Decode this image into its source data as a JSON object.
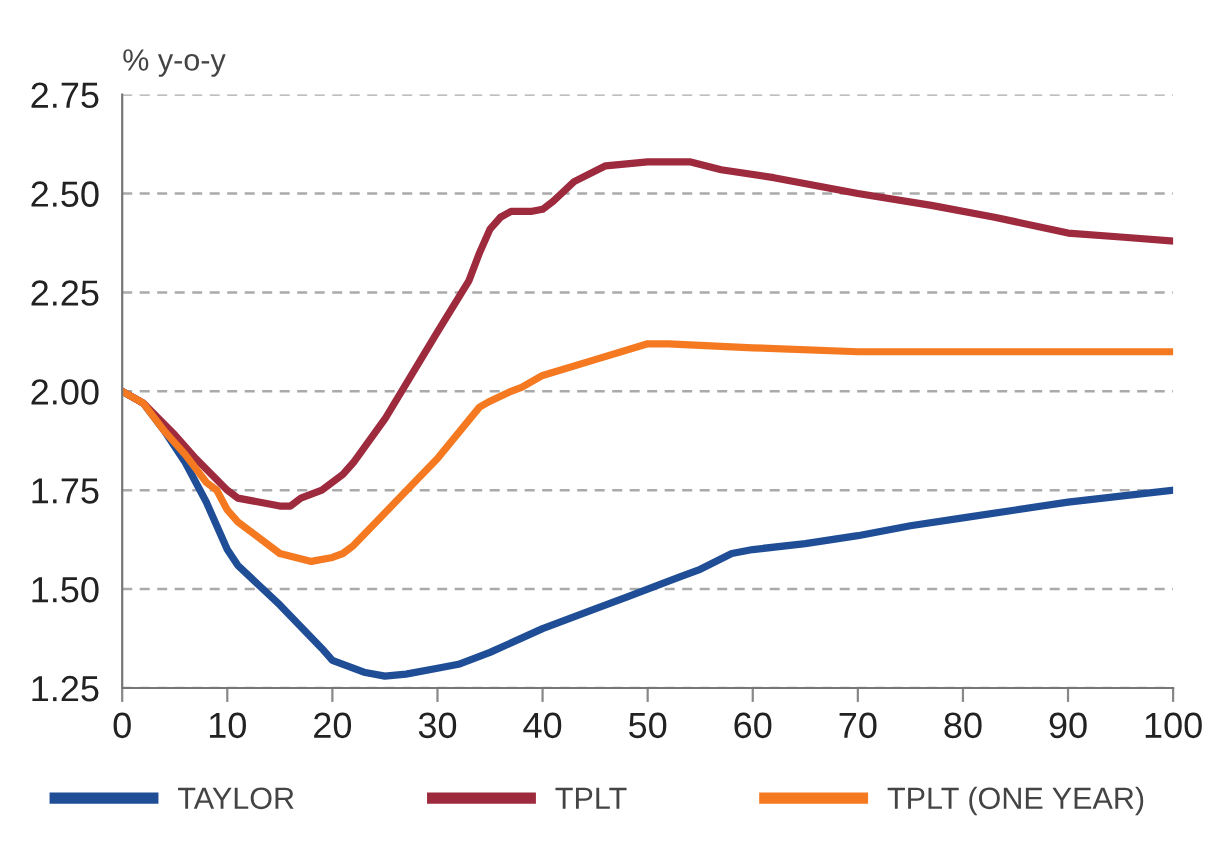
{
  "chart_data": {
    "type": "line",
    "ylabel": "% y-o-y",
    "xlim": [
      0,
      100
    ],
    "ylim": [
      1.25,
      2.75
    ],
    "xticks": [
      0,
      10,
      20,
      30,
      40,
      50,
      60,
      70,
      80,
      90,
      100
    ],
    "yticks": [
      {
        "value": 1.25,
        "label": "1.25"
      },
      {
        "value": 1.5,
        "label": "1.50"
      },
      {
        "value": 1.75,
        "label": "1.75"
      },
      {
        "value": 2.0,
        "label": "2.00"
      },
      {
        "value": 2.25,
        "label": "2.25"
      },
      {
        "value": 2.5,
        "label": "2.50"
      },
      {
        "value": 2.75,
        "label": "2.75"
      }
    ],
    "grid": "y",
    "legend": "bottom",
    "marker": "none",
    "line_style": "solid",
    "series": [
      {
        "name": "TAYLOR",
        "color": "#1f4e96",
        "x": [
          0,
          2,
          4,
          6,
          8,
          10,
          11,
          15,
          19,
          20,
          23,
          25,
          27,
          30,
          32,
          35,
          40,
          45,
          48,
          50,
          53,
          55,
          58,
          60,
          65,
          70,
          75,
          80,
          85,
          90,
          95,
          100
        ],
        "values": [
          2.0,
          1.97,
          1.9,
          1.82,
          1.72,
          1.6,
          1.56,
          1.46,
          1.35,
          1.32,
          1.29,
          1.28,
          1.285,
          1.3,
          1.31,
          1.34,
          1.4,
          1.45,
          1.48,
          1.5,
          1.53,
          1.55,
          1.59,
          1.6,
          1.615,
          1.635,
          1.66,
          1.68,
          1.7,
          1.72,
          1.735,
          1.75
        ]
      },
      {
        "name": "TPLT",
        "color": "#9e2a3e",
        "x": [
          0,
          2,
          5,
          7,
          10,
          11,
          15,
          16,
          17,
          19,
          21,
          22,
          25,
          30,
          33,
          34,
          35,
          36,
          37,
          39,
          40,
          41,
          43,
          46,
          50,
          54,
          57,
          62,
          70,
          77,
          83,
          90,
          95,
          100
        ],
        "values": [
          2.0,
          1.97,
          1.89,
          1.83,
          1.75,
          1.73,
          1.71,
          1.71,
          1.73,
          1.75,
          1.79,
          1.82,
          1.93,
          2.15,
          2.28,
          2.35,
          2.41,
          2.44,
          2.455,
          2.455,
          2.46,
          2.48,
          2.53,
          2.57,
          2.58,
          2.58,
          2.56,
          2.54,
          2.5,
          2.47,
          2.44,
          2.4,
          2.39,
          2.38
        ]
      },
      {
        "name": "TPLT (ONE YEAR)",
        "color": "#f47920",
        "x": [
          0,
          2,
          4,
          6,
          8,
          9,
          10,
          11,
          15,
          18,
          20,
          21,
          22,
          26,
          30,
          34,
          35,
          37,
          38,
          40,
          45,
          50,
          52,
          60,
          70,
          75,
          100
        ],
        "values": [
          2.0,
          1.97,
          1.9,
          1.84,
          1.77,
          1.75,
          1.7,
          1.67,
          1.59,
          1.57,
          1.58,
          1.59,
          1.61,
          1.72,
          1.83,
          1.96,
          1.975,
          2.0,
          2.01,
          2.04,
          2.08,
          2.12,
          2.12,
          2.11,
          2.1,
          2.1,
          2.1
        ]
      }
    ]
  }
}
